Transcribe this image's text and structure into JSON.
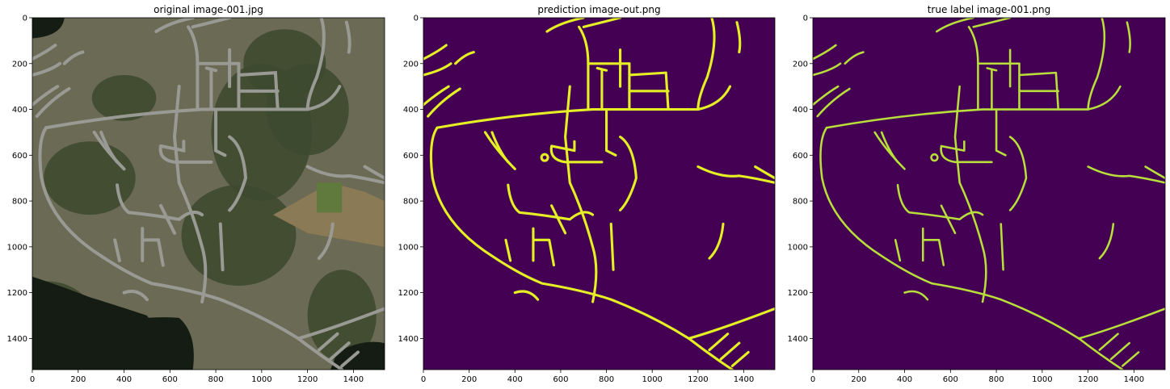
{
  "panels": [
    {
      "title": "original image-001.jpg",
      "kind": "photo"
    },
    {
      "title": "prediction image-out.png",
      "kind": "prediction"
    },
    {
      "title": "true label image-001.png",
      "kind": "label"
    }
  ],
  "axes": {
    "range": [
      0,
      1536
    ],
    "x_ticks": [
      "0",
      "200",
      "400",
      "600",
      "800",
      "1000",
      "1200",
      "1400"
    ],
    "y_ticks": [
      "0",
      "200",
      "400",
      "600",
      "800",
      "1000",
      "1200",
      "1400"
    ]
  },
  "colors": {
    "background_mask": "#440154",
    "road_prediction": "#e4f024",
    "road_label": "#b8df3a",
    "photo_forest": "#3e4a2f",
    "photo_water": "#141c14",
    "photo_field": "#8a7a55"
  }
}
